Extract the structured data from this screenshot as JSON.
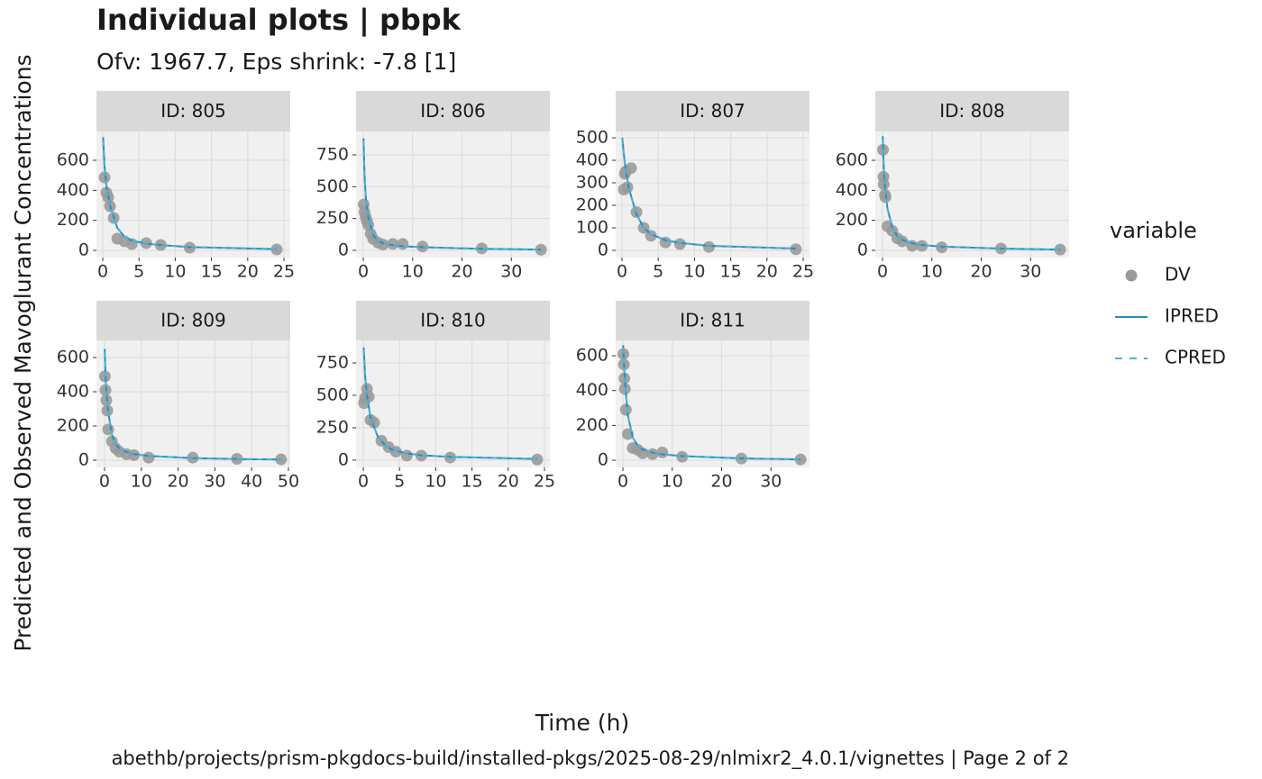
{
  "chart_data": {
    "type": "facet_line",
    "title": "Individual plots | pbpk",
    "subtitle": "Ofv: 1967.7, Eps shrink: -7.8 [1]",
    "x_label": "Time (h)",
    "y_label": "Predicted and Observed Mavoglurant Concentrations",
    "caption": "abethb/projects/prism-pkgdocs-build/installed-pkgs/2025-08-29/nlmixr2_4.0.1/vignettes | Page 2 of 2",
    "grid": true,
    "legend": {
      "title": "variable",
      "position": "right",
      "entries": [
        {
          "name": "DV",
          "color": "#9a9a9a",
          "kind": "point"
        },
        {
          "name": "IPRED",
          "color": "#2b8cbe",
          "kind": "solid"
        },
        {
          "name": "CPRED",
          "color": "#4eb3d3",
          "kind": "dashed"
        }
      ]
    },
    "panels": [
      {
        "strip": "ID: 805",
        "xlim": [
          -0.87,
          25.87
        ],
        "xticks": [
          0,
          5,
          10,
          15,
          20,
          25
        ],
        "ylim": [
          -48,
          792
        ],
        "yticks": [
          0,
          200,
          400,
          600
        ],
        "dv": {
          "x": [
            0.25,
            0.5,
            0.75,
            1,
            1.5,
            2,
            3,
            4,
            6,
            8,
            12,
            24
          ],
          "y": [
            486,
            384,
            354,
            294,
            216,
            78,
            60,
            42,
            48,
            36,
            18,
            6
          ]
        },
        "ipred": {
          "x": [
            0.05,
            0.25,
            0.5,
            1,
            2,
            3,
            4,
            6,
            8,
            12,
            24
          ],
          "y": [
            754,
            560,
            430,
            300,
            150,
            90,
            65,
            45,
            35,
            22,
            8
          ]
        },
        "cpred": {
          "x": [
            0.05,
            0.25,
            0.5,
            1,
            2,
            3,
            4,
            6,
            8,
            12,
            24
          ],
          "y": [
            730,
            550,
            425,
            295,
            152,
            92,
            66,
            46,
            35,
            23,
            9
          ]
        }
      },
      {
        "strip": "ID: 806",
        "xlim": [
          -1.46,
          37.8
        ],
        "xticks": [
          0,
          10,
          20,
          30
        ],
        "ylim": [
          -57,
          934
        ],
        "yticks": [
          0,
          250,
          500,
          750
        ],
        "dv": {
          "x": [
            0.1,
            0.25,
            0.5,
            0.75,
            1,
            1.5,
            2,
            3,
            4,
            6,
            8,
            12,
            24,
            36
          ],
          "y": [
            360,
            300,
            260,
            230,
            200,
            130,
            90,
            60,
            45,
            50,
            50,
            30,
            15,
            5
          ]
        },
        "ipred": {
          "x": [
            0.05,
            0.25,
            0.5,
            1,
            2,
            3,
            4,
            6,
            8,
            12,
            24,
            36
          ],
          "y": [
            880,
            600,
            420,
            260,
            120,
            75,
            55,
            40,
            32,
            24,
            12,
            6
          ]
        },
        "cpred": {
          "x": [
            0.05,
            0.25,
            0.5,
            1,
            2,
            3,
            4,
            6,
            8,
            12,
            24,
            36
          ],
          "y": [
            860,
            590,
            415,
            258,
            122,
            77,
            56,
            41,
            33,
            24,
            12,
            6
          ]
        }
      },
      {
        "strip": "ID: 807",
        "xlim": [
          -0.87,
          25.87
        ],
        "xticks": [
          0,
          5,
          10,
          15,
          20,
          25
        ],
        "ylim": [
          -32,
          528
        ],
        "yticks": [
          0,
          100,
          200,
          300,
          400,
          500
        ],
        "dv": {
          "x": [
            0.25,
            0.4,
            0.5,
            0.75,
            1.25,
            2,
            3,
            4,
            6,
            8,
            12,
            24
          ],
          "y": [
            270,
            340,
            350,
            280,
            365,
            170,
            100,
            65,
            35,
            28,
            15,
            5
          ]
        },
        "ipred": {
          "x": [
            0.05,
            0.25,
            0.5,
            1,
            2,
            3,
            4,
            6,
            8,
            12,
            24
          ],
          "y": [
            500,
            430,
            360,
            270,
            160,
            100,
            72,
            45,
            33,
            20,
            8
          ]
        },
        "cpred": {
          "x": [
            0.05,
            0.25,
            0.5,
            1,
            2,
            3,
            4,
            6,
            8,
            12,
            24
          ],
          "y": [
            495,
            425,
            357,
            268,
            161,
            101,
            73,
            46,
            34,
            21,
            8
          ]
        }
      },
      {
        "strip": "ID: 808",
        "xlim": [
          -1.46,
          37.8
        ],
        "xticks": [
          0,
          10,
          20,
          30
        ],
        "ylim": [
          -48,
          792
        ],
        "yticks": [
          0,
          200,
          400,
          600
        ],
        "dv": {
          "x": [
            0.1,
            0.2,
            0.25,
            0.5,
            0.6,
            1,
            2,
            3,
            4,
            6,
            8,
            12,
            24,
            36
          ],
          "y": [
            670,
            490,
            440,
            370,
            355,
            160,
            130,
            80,
            60,
            30,
            30,
            20,
            12,
            5
          ]
        },
        "ipred": {
          "x": [
            0.05,
            0.25,
            0.5,
            1,
            2,
            3,
            4,
            6,
            8,
            12,
            24,
            36
          ],
          "y": [
            760,
            560,
            420,
            280,
            150,
            95,
            70,
            48,
            36,
            25,
            12,
            5
          ]
        },
        "cpred": {
          "x": [
            0.05,
            0.25,
            0.5,
            1,
            2,
            3,
            4,
            6,
            8,
            12,
            24,
            36
          ],
          "y": [
            740,
            550,
            415,
            278,
            151,
            96,
            71,
            49,
            37,
            25,
            12,
            5
          ]
        }
      },
      {
        "strip": "ID: 809",
        "xlim": [
          -2.2,
          50.5
        ],
        "xticks": [
          0,
          10,
          20,
          30,
          40,
          50
        ],
        "ylim": [
          -42,
          700
        ],
        "yticks": [
          0,
          200,
          400,
          600
        ],
        "dv": {
          "x": [
            0.1,
            0.25,
            0.5,
            0.75,
            1,
            2,
            3,
            4,
            6,
            8,
            12,
            24,
            36,
            48
          ],
          "y": [
            490,
            410,
            350,
            290,
            180,
            110,
            70,
            50,
            35,
            30,
            15,
            15,
            8,
            5
          ]
        },
        "ipred": {
          "x": [
            0.05,
            0.25,
            0.5,
            1,
            2,
            3,
            4,
            6,
            8,
            12,
            24,
            36,
            48
          ],
          "y": [
            650,
            500,
            400,
            280,
            150,
            95,
            70,
            48,
            36,
            25,
            12,
            7,
            4
          ]
        },
        "cpred": {
          "x": [
            0.05,
            0.25,
            0.5,
            1,
            2,
            3,
            4,
            6,
            8,
            12,
            24,
            36,
            48
          ],
          "y": [
            635,
            495,
            398,
            279,
            151,
            96,
            71,
            49,
            37,
            25,
            12,
            7,
            4
          ]
        }
      },
      {
        "strip": "ID: 810",
        "xlim": [
          -1.0,
          25.75
        ],
        "xticks": [
          0,
          5,
          10,
          15,
          20,
          25
        ],
        "ylim": [
          -56,
          924
        ],
        "yticks": [
          0,
          250,
          500,
          750
        ],
        "dv": {
          "x": [
            0.1,
            0.25,
            0.5,
            0.75,
            1,
            1.5,
            2.5,
            3.5,
            4.5,
            6,
            8,
            12,
            24
          ],
          "y": [
            440,
            480,
            550,
            490,
            310,
            290,
            150,
            100,
            65,
            35,
            35,
            20,
            5
          ]
        },
        "ipred": {
          "x": [
            0.05,
            0.25,
            0.5,
            1,
            2,
            3,
            4,
            6,
            8,
            12,
            24
          ],
          "y": [
            870,
            650,
            500,
            330,
            180,
            115,
            80,
            52,
            38,
            25,
            9
          ]
        },
        "cpred": {
          "x": [
            0.05,
            0.25,
            0.5,
            1,
            2,
            3,
            4,
            6,
            8,
            12,
            24
          ],
          "y": [
            850,
            640,
            495,
            328,
            181,
            116,
            81,
            53,
            39,
            25,
            9
          ]
        }
      },
      {
        "strip": "ID: 811",
        "xlim": [
          -1.46,
          37.8
        ],
        "xticks": [
          0,
          10,
          20,
          30
        ],
        "ylim": [
          -41,
          688
        ],
        "yticks": [
          0,
          200,
          400,
          600
        ],
        "dv": {
          "x": [
            0.1,
            0.2,
            0.3,
            0.4,
            0.6,
            1,
            2,
            3,
            4,
            6,
            8,
            12,
            24,
            36
          ],
          "y": [
            610,
            550,
            470,
            410,
            290,
            150,
            70,
            60,
            40,
            35,
            45,
            20,
            10,
            5
          ]
        },
        "ipred": {
          "x": [
            0.05,
            0.25,
            0.5,
            1,
            2,
            3,
            4,
            6,
            8,
            12,
            24,
            36
          ],
          "y": [
            660,
            540,
            420,
            260,
            130,
            85,
            62,
            44,
            34,
            24,
            11,
            5
          ]
        },
        "cpred": {
          "x": [
            0.05,
            0.25,
            0.5,
            1,
            2,
            3,
            4,
            6,
            8,
            12,
            24,
            36
          ],
          "y": [
            645,
            535,
            418,
            259,
            131,
            86,
            63,
            45,
            35,
            24,
            11,
            5
          ]
        }
      }
    ]
  }
}
